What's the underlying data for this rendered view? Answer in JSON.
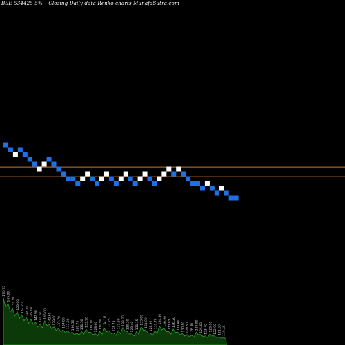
{
  "header": {
    "title": "BSE 534425 5%~   Closing Daily data  Renko  charts MunafaSutra.com"
  },
  "chart_data": {
    "type": "renko",
    "title": "BSE 534425 5%~   Closing Daily data  Renko  charts MunafaSutra.com",
    "colors": {
      "up": "#ffffff",
      "down": "#1f6fe6",
      "reference_line": "#c8742c",
      "volume_fill": "#0b3a08",
      "volume_stroke": "#2aa52a",
      "volume_label": "#cfcfcf"
    },
    "reference_levels": [
      137.6,
      132.2
    ],
    "ylim": [
      60,
      180
    ],
    "brick_levels": [
      150,
      147.3,
      144.6,
      147.3,
      144.6,
      141.9,
      139.2,
      136.5,
      139.2,
      141.9,
      139.2,
      136.5,
      133.8,
      131.1,
      131.1,
      128.4,
      131.1,
      133.8,
      131.1,
      128.4,
      131.1,
      133.8,
      131.1,
      128.4,
      131.1,
      133.8,
      131.1,
      128.4,
      131.1,
      133.8,
      131.1,
      128.4,
      131.1,
      133.8,
      136.5,
      133.8,
      136.5,
      133.8,
      131.1,
      128.4,
      128.4,
      125.7,
      128.4,
      125.7,
      123.0,
      125.7,
      123.0,
      120.3,
      120.3
    ],
    "brick_directions": [
      "down",
      "down",
      "up",
      "down",
      "down",
      "down",
      "down",
      "up",
      "up",
      "down",
      "down",
      "down",
      "down",
      "down",
      "down",
      "down",
      "up",
      "up",
      "down",
      "down",
      "up",
      "up",
      "down",
      "down",
      "up",
      "up",
      "down",
      "down",
      "up",
      "up",
      "down",
      "down",
      "up",
      "up",
      "up",
      "down",
      "up",
      "down",
      "down",
      "down",
      "down",
      "down",
      "up",
      "down",
      "down",
      "up",
      "down",
      "down",
      "down"
    ],
    "volume_labels": [
      "170.75",
      "165.90",
      "159.90",
      "155.00",
      "152.20",
      "148.00",
      "145.10",
      "142.90",
      "140.50",
      "146.00",
      "142.60",
      "139.00",
      "137.70",
      "134.80",
      "133.90",
      "130.50",
      "128.75",
      "131.50",
      "133.90",
      "130.70",
      "128.60",
      "131.90",
      "134.10",
      "131.25",
      "128.75",
      "131.60",
      "133.70",
      "130.20",
      "128.40",
      "131.15",
      "133.80",
      "131.00",
      "128.90",
      "131.70",
      "134.50",
      "136.90",
      "133.85",
      "136.20",
      "133.40",
      "130.80",
      "128.50",
      "126.30",
      "128.90",
      "125.60",
      "123.40",
      "126.00",
      "122.90",
      "121.50",
      "119.45"
    ],
    "volume_values": [
      62,
      55,
      48,
      44,
      40,
      36,
      34,
      30,
      28,
      32,
      27,
      24,
      22,
      20,
      19,
      17,
      16,
      18,
      21,
      17,
      15,
      18,
      22,
      19,
      16,
      19,
      23,
      18,
      15,
      18,
      24,
      20,
      16,
      19,
      25,
      22,
      18,
      21,
      17,
      15,
      14,
      13,
      17,
      14,
      12,
      15,
      12,
      11,
      10
    ]
  }
}
